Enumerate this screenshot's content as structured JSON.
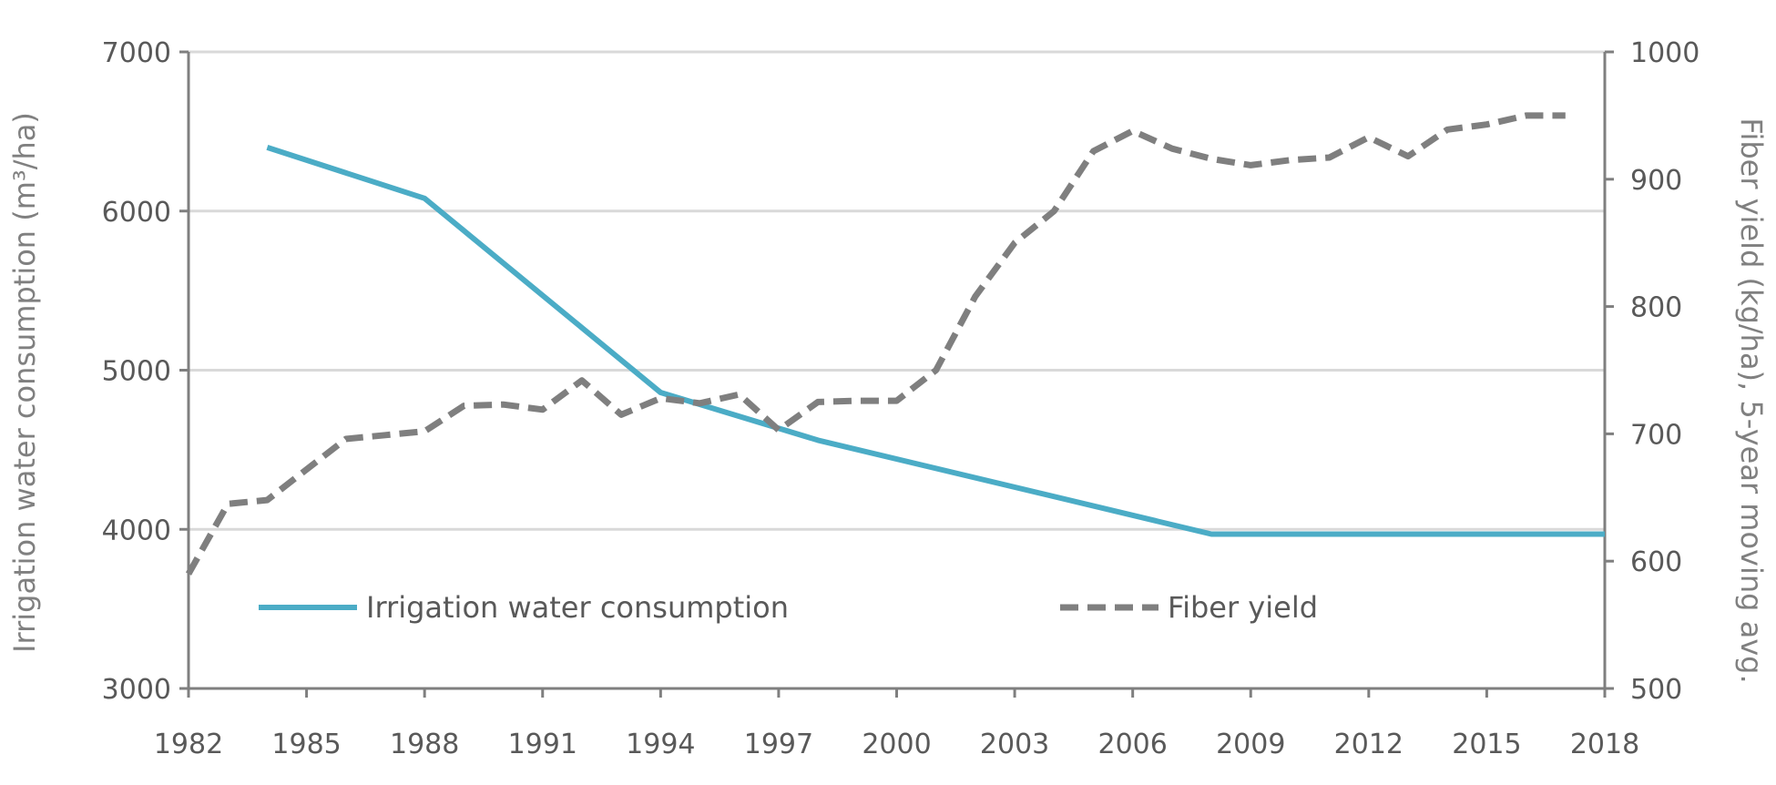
{
  "chart_data": {
    "type": "line",
    "x_ticks": [
      "1982",
      "1985",
      "1988",
      "1991",
      "1994",
      "1997",
      "2000",
      "2003",
      "2006",
      "2009",
      "2012",
      "2015",
      "2018"
    ],
    "xlim": [
      1982,
      2018
    ],
    "ylabel": "Irrigation water consumption (m³/ha)",
    "ylim": [
      3000,
      7000
    ],
    "y_ticks": [
      "3000",
      "4000",
      "5000",
      "6000",
      "7000"
    ],
    "y2label": "Fiber yield (kg/ha), 5-year moving avg.",
    "y2lim": [
      500,
      1000
    ],
    "y2_ticks": [
      "500",
      "600",
      "700",
      "800",
      "900",
      "1000"
    ],
    "grid": "horizontal",
    "legend_position": "bottom",
    "series": [
      {
        "name": "Irrigation water consumption",
        "axis": "left",
        "color": "#4bacc6",
        "style": "solid",
        "x": [
          1984,
          1988,
          1994,
          1998,
          2008,
          2018
        ],
        "values": [
          6400,
          6080,
          4860,
          4560,
          3970,
          3970
        ]
      },
      {
        "name": "Fiber yield",
        "axis": "right",
        "color": "#7f7f7f",
        "style": "dashed",
        "x": [
          1982,
          1983,
          1984,
          1985,
          1986,
          1987,
          1988,
          1989,
          1990,
          1991,
          1992,
          1993,
          1994,
          1995,
          1996,
          1997,
          1998,
          1999,
          2000,
          2001,
          2002,
          2003,
          2004,
          2005,
          2006,
          2007,
          2008,
          2009,
          2010,
          2011,
          2012,
          2013,
          2014,
          2015,
          2016,
          2017
        ],
        "values": [
          590,
          645,
          648,
          672,
          696,
          699,
          702,
          722,
          723,
          719,
          742,
          715,
          728,
          724,
          731,
          703,
          725,
          726,
          726,
          750,
          808,
          850,
          875,
          922,
          938,
          924,
          916,
          911,
          915,
          917,
          933,
          918,
          939,
          943,
          950,
          950
        ]
      }
    ]
  }
}
